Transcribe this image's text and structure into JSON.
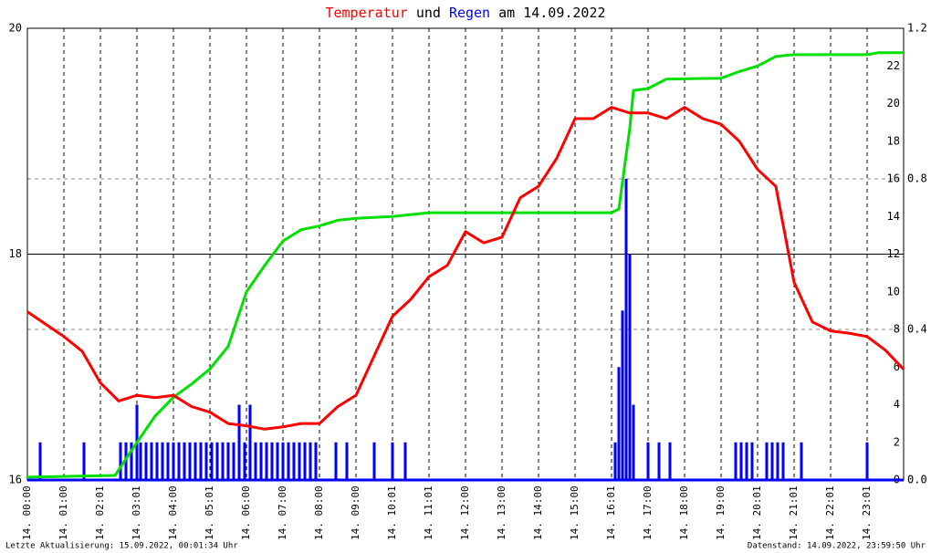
{
  "chart_data": {
    "type": "line",
    "title_connector": "und",
    "title_suffix": "am 14.09.2022",
    "footer_left": "Letzte Aktualisierung: 15.09.2022, 00:01:34 Uhr",
    "footer_right": "Datenstand: 14.09.2022, 23:59:50 Uhr",
    "xlim": [
      0,
      24
    ],
    "xticks": [
      {
        "value": 0,
        "label": "14. 00:00"
      },
      {
        "value": 1,
        "label": "14. 01:00"
      },
      {
        "value": 2,
        "label": "14. 02:01"
      },
      {
        "value": 3,
        "label": "14. 03:01"
      },
      {
        "value": 4,
        "label": "14. 04:00"
      },
      {
        "value": 5,
        "label": "14. 05:01"
      },
      {
        "value": 6,
        "label": "14. 06:00"
      },
      {
        "value": 7,
        "label": "14. 07:00"
      },
      {
        "value": 8,
        "label": "14. 08:00"
      },
      {
        "value": 9,
        "label": "14. 09:00"
      },
      {
        "value": 10,
        "label": "14. 10:01"
      },
      {
        "value": 11,
        "label": "14. 11:01"
      },
      {
        "value": 12,
        "label": "14. 12:00"
      },
      {
        "value": 13,
        "label": "14. 13:00"
      },
      {
        "value": 14,
        "label": "14. 14:00"
      },
      {
        "value": 15,
        "label": "14. 15:00"
      },
      {
        "value": 16,
        "label": "14. 16:01"
      },
      {
        "value": 17,
        "label": "14. 17:00"
      },
      {
        "value": 18,
        "label": "14. 18:00"
      },
      {
        "value": 19,
        "label": "14. 19:00"
      },
      {
        "value": 20,
        "label": "14. 20:01"
      },
      {
        "value": 21,
        "label": "14. 21:01"
      },
      {
        "value": 22,
        "label": "14. 22:01"
      },
      {
        "value": 23,
        "label": "14. 23:01"
      }
    ],
    "ylim": [
      16,
      20
    ],
    "yticks": [
      16,
      18,
      20
    ],
    "y2lim": [
      0,
      1.2
    ],
    "y2ticks": [
      {
        "value": 0,
        "label": "0.0"
      },
      0.4,
      0.8,
      1.2
    ],
    "y3lim": [
      0,
      24
    ],
    "y3ticks": [
      0,
      2,
      4,
      6,
      8,
      10,
      12,
      14,
      16,
      18,
      20,
      22
    ],
    "grid": true,
    "series": [
      {
        "name": "Temperatur",
        "color": "#ff0000",
        "kind": "line",
        "x": [
          0,
          0.5,
          1,
          1.5,
          2,
          2.5,
          3,
          3.5,
          4,
          4.5,
          5,
          5.5,
          6,
          6.5,
          7,
          7.5,
          8,
          8.5,
          9,
          9.5,
          10,
          10.5,
          11,
          11.5,
          12,
          12.5,
          13,
          13.5,
          14,
          14.5,
          15,
          15.5,
          16,
          16.5,
          17,
          17.5,
          18,
          18.5,
          19,
          19.5,
          20,
          20.5,
          21,
          21.5,
          22,
          22.5,
          23,
          23.5,
          24
        ],
        "values": [
          17.49,
          17.38,
          17.27,
          17.14,
          16.86,
          16.7,
          16.75,
          16.73,
          16.75,
          16.65,
          16.6,
          16.5,
          16.48,
          16.45,
          16.47,
          16.5,
          16.5,
          16.65,
          16.75,
          17.1,
          17.45,
          17.6,
          17.8,
          17.9,
          18.2,
          18.1,
          18.15,
          18.5,
          18.6,
          18.85,
          19.2,
          19.2,
          19.3,
          19.25,
          19.25,
          19.2,
          19.3,
          19.2,
          19.15,
          19.0,
          18.75,
          18.6,
          17.75,
          17.4,
          17.32,
          17.3,
          17.27,
          17.15,
          16.98
        ]
      },
      {
        "color": "#00e000",
        "kind": "line",
        "axis": "y3",
        "x": [
          0,
          2.4,
          3,
          3.5,
          4,
          4.5,
          5,
          5.5,
          6,
          6.5,
          7,
          7.5,
          8,
          8.5,
          9,
          10,
          11,
          12,
          16,
          16.2,
          16.5,
          16.6,
          17,
          17.5,
          19,
          19.5,
          20,
          20.5,
          21,
          23,
          23.3,
          24
        ],
        "values": [
          0.15,
          0.24,
          2,
          3.4,
          4.4,
          5.1,
          5.9,
          7.1,
          10,
          11.4,
          12.7,
          13.3,
          13.5,
          13.8,
          13.9,
          14,
          14.2,
          14.2,
          14.2,
          14.4,
          18.7,
          20.7,
          20.8,
          21.3,
          21.35,
          21.7,
          22,
          22.5,
          22.6,
          22.6,
          22.7,
          22.7
        ]
      },
      {
        "name": "Regen",
        "color": "#0000ff",
        "kind": "bar",
        "axis": "y2",
        "x": [
          0.35,
          1.55,
          2.55,
          2.7,
          2.85,
          3.0,
          3.1,
          3.25,
          3.4,
          3.55,
          3.7,
          3.85,
          4.0,
          4.15,
          4.3,
          4.45,
          4.6,
          4.75,
          4.9,
          5.05,
          5.2,
          5.35,
          5.5,
          5.65,
          5.8,
          5.95,
          6.1,
          6.25,
          6.4,
          6.55,
          6.7,
          6.85,
          7.0,
          7.15,
          7.3,
          7.45,
          7.6,
          7.75,
          7.9,
          8.45,
          8.75,
          9.5,
          10.0,
          10.35,
          16.1,
          16.2,
          16.3,
          16.4,
          16.5,
          16.6,
          17.0,
          17.3,
          17.6,
          19.4,
          19.55,
          19.7,
          19.85,
          20.25,
          20.4,
          20.55,
          20.7,
          21.2,
          23.0
        ],
        "values": [
          0.1,
          0.1,
          0.1,
          0.1,
          0.1,
          0.2,
          0.1,
          0.1,
          0.1,
          0.1,
          0.1,
          0.1,
          0.1,
          0.1,
          0.1,
          0.1,
          0.1,
          0.1,
          0.1,
          0.1,
          0.1,
          0.1,
          0.1,
          0.1,
          0.2,
          0.1,
          0.2,
          0.1,
          0.1,
          0.1,
          0.1,
          0.1,
          0.1,
          0.1,
          0.1,
          0.1,
          0.1,
          0.1,
          0.1,
          0.1,
          0.1,
          0.1,
          0.1,
          0.1,
          0.1,
          0.3,
          0.45,
          0.8,
          0.6,
          0.2,
          0.1,
          0.1,
          0.1,
          0.1,
          0.1,
          0.1,
          0.1,
          0.1,
          0.1,
          0.1,
          0.1,
          0.1,
          0.1
        ]
      }
    ]
  }
}
